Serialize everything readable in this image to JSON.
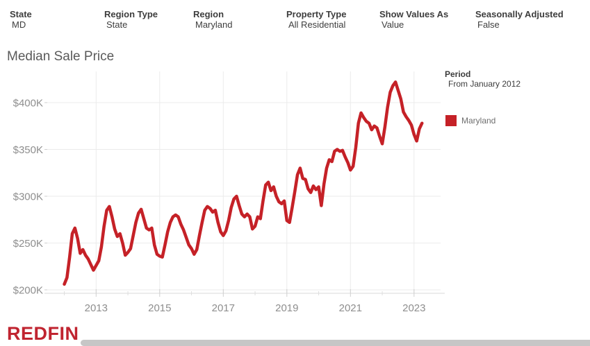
{
  "header": {
    "filters": [
      {
        "label": "State",
        "value": "MD"
      },
      {
        "label": "Region Type",
        "value": "State"
      },
      {
        "label": "Region",
        "value": "Maryland"
      },
      {
        "label": "Property Type",
        "value": "All Residential"
      },
      {
        "label": "Show Values As",
        "value": "Value"
      },
      {
        "label": "Seasonally Adjusted",
        "value": "False"
      }
    ]
  },
  "title": "Median Sale Price",
  "legend": {
    "period_label": "Period",
    "period_value": "From January 2012",
    "series_label": "Maryland",
    "series_color": "#c52127"
  },
  "logo_text": "REDFIN",
  "logo_color": "#c02430",
  "chart_data": {
    "type": "line",
    "title": "Median Sale Price",
    "xlabel": "",
    "ylabel": "",
    "grid": true,
    "legend_position": "right",
    "x_ticks": [
      2013,
      2015,
      2017,
      2019,
      2021,
      2023
    ],
    "x_minor_ticks_every_year": true,
    "x_range_years": [
      2012,
      2023.85
    ],
    "y_ticks": [
      "$200K",
      "$250K",
      "$300K",
      "$350K",
      "$400K"
    ],
    "y_tick_values_thousands": [
      200,
      250,
      300,
      350,
      400
    ],
    "y_range_thousands": [
      200,
      430
    ],
    "series": [
      {
        "name": "Maryland",
        "color": "#c52127",
        "start": "2012-01",
        "end": "2023-04",
        "frequency": "monthly",
        "unit": "USD thousands",
        "values": [
          206,
          213,
          235,
          260,
          266,
          255,
          239,
          243,
          237,
          233,
          227,
          221,
          226,
          231,
          246,
          268,
          285,
          289,
          278,
          265,
          257,
          260,
          250,
          237,
          240,
          244,
          258,
          272,
          282,
          286,
          276,
          266,
          264,
          266,
          248,
          238,
          236,
          235,
          248,
          262,
          272,
          278,
          280,
          278,
          270,
          264,
          256,
          248,
          244,
          238,
          243,
          258,
          272,
          285,
          289,
          287,
          283,
          285,
          272,
          262,
          258,
          263,
          274,
          288,
          297,
          300,
          290,
          281,
          278,
          281,
          278,
          265,
          268,
          278,
          276,
          295,
          312,
          315,
          306,
          310,
          300,
          294,
          292,
          295,
          274,
          272,
          288,
          305,
          323,
          330,
          319,
          318,
          308,
          304,
          311,
          307,
          310,
          290,
          313,
          330,
          339,
          337,
          348,
          350,
          348,
          349,
          342,
          336,
          328,
          332,
          352,
          378,
          389,
          384,
          380,
          378,
          371,
          375,
          373,
          364,
          356,
          374,
          395,
          411,
          418,
          422,
          413,
          404,
          390,
          385,
          381,
          376,
          366,
          359,
          372,
          378
        ]
      }
    ]
  }
}
